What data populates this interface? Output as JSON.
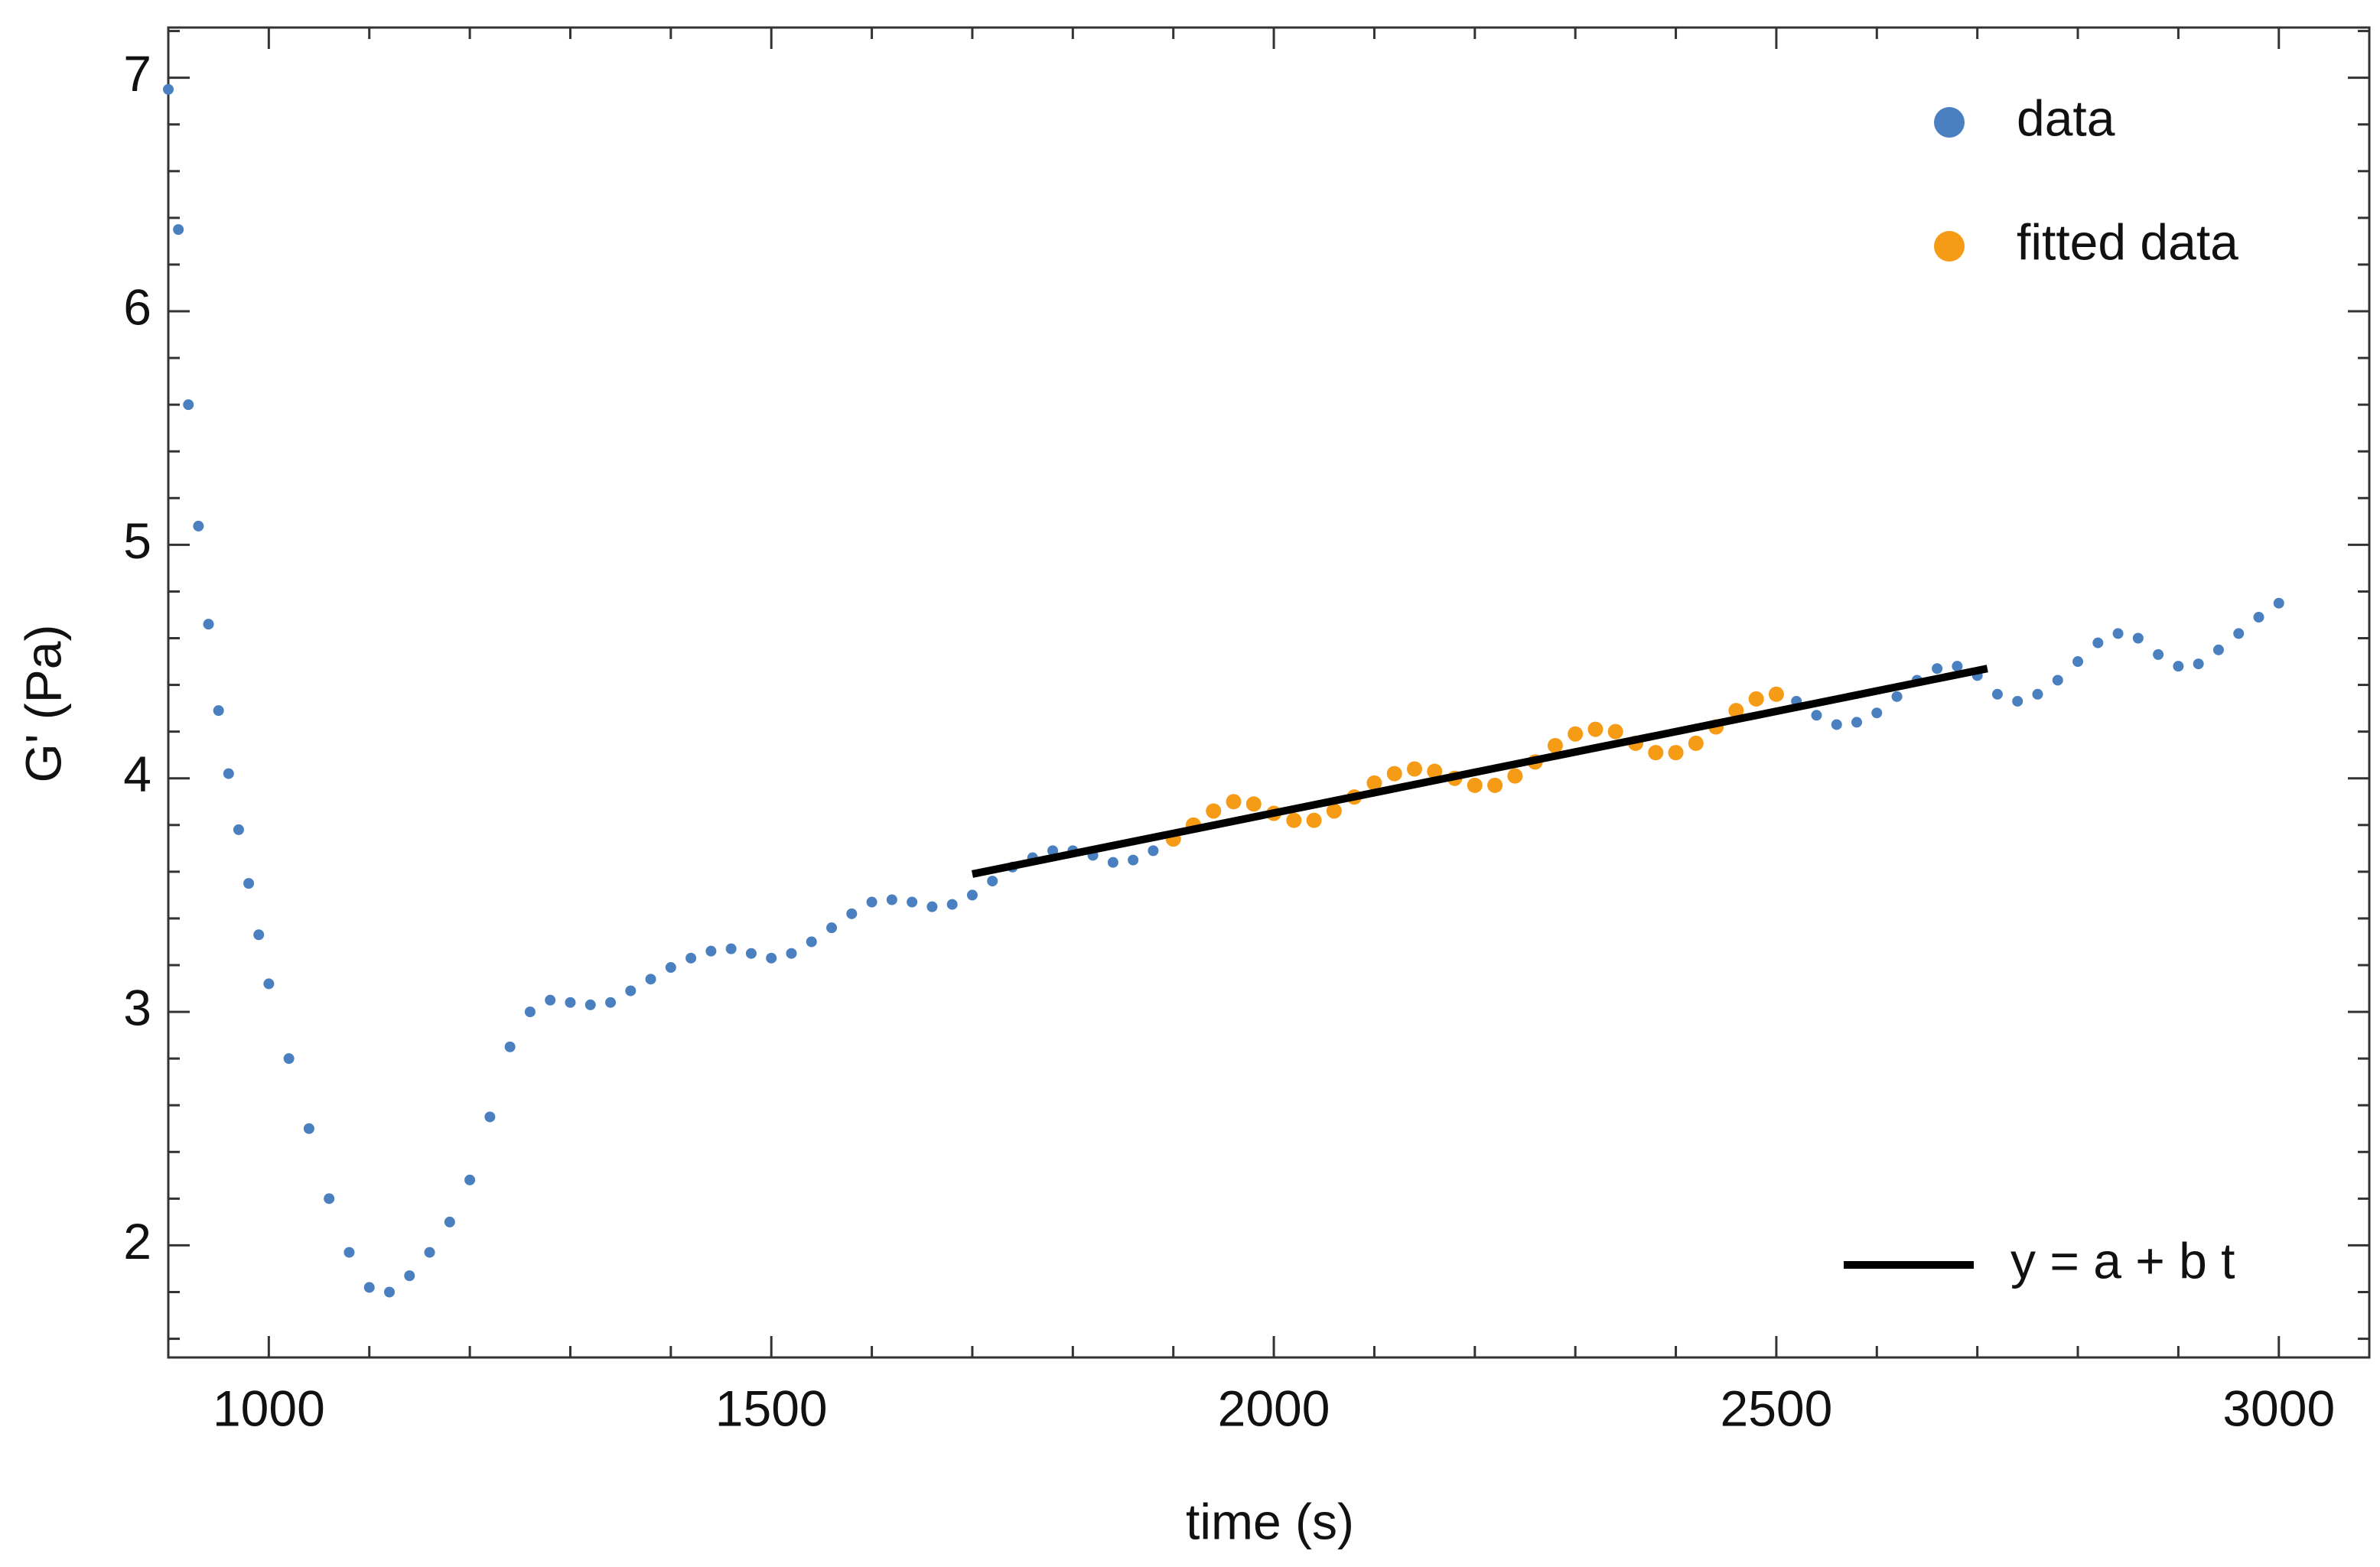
{
  "chart_data": {
    "type": "scatter",
    "xlabel": "time (s)",
    "ylabel": "G'  (Pa)",
    "xlim": [
      900,
      3090
    ],
    "ylim": [
      1.52,
      7.215
    ],
    "xticks": [
      1000,
      1500,
      2000,
      2500,
      3000
    ],
    "yticks": [
      2,
      3,
      4,
      5,
      6,
      7
    ],
    "xminorticks": [
      900,
      1100,
      1200,
      1300,
      1400,
      1600,
      1700,
      1800,
      1900,
      2100,
      2200,
      2300,
      2400,
      2600,
      2700,
      2800,
      2900
    ],
    "yminorticks": [
      1.6,
      1.8,
      2.2,
      2.4,
      2.6,
      2.8,
      3.2,
      3.4,
      3.6,
      3.8,
      4.2,
      4.4,
      4.6,
      4.8,
      5.2,
      5.4,
      5.6,
      5.8,
      6.2,
      6.4,
      6.6,
      6.8,
      7.2
    ],
    "series": [
      {
        "name": "data",
        "type": "scatter",
        "color": "#4a80bf",
        "x": [
          900,
          910,
          920,
          930,
          940,
          950,
          960,
          970,
          980,
          990,
          1000,
          1020,
          1040,
          1060,
          1080,
          1100,
          1120,
          1140,
          1160,
          1180,
          1200,
          1220,
          1240,
          1260,
          1280,
          1300,
          1320,
          1340,
          1360,
          1380,
          1400,
          1420,
          1440,
          1460,
          1480,
          1500,
          1520,
          1540,
          1560,
          1580,
          1600,
          1620,
          1640,
          1660,
          1680,
          1700,
          1720,
          1740,
          1760,
          1780,
          1800,
          1820,
          1840,
          1860,
          1880,
          1900,
          1920,
          1940,
          1960,
          1980,
          2000,
          2020,
          2040,
          2060,
          2080,
          2100,
          2120,
          2140,
          2160,
          2180,
          2200,
          2220,
          2240,
          2260,
          2280,
          2300,
          2320,
          2340,
          2360,
          2380,
          2400,
          2420,
          2440,
          2460,
          2480,
          2500,
          2520,
          2540,
          2560,
          2580,
          2600,
          2620,
          2640,
          2660,
          2680,
          2700,
          2720,
          2740,
          2760,
          2780,
          2800,
          2820,
          2840,
          2860,
          2880,
          2900,
          2920,
          2940,
          2960,
          2980,
          3000
        ],
        "values": [
          6.95,
          6.35,
          5.6,
          5.08,
          4.66,
          4.29,
          4.02,
          3.78,
          3.55,
          3.33,
          3.12,
          2.8,
          2.5,
          2.2,
          1.97,
          1.82,
          1.8,
          1.87,
          1.97,
          2.1,
          2.28,
          2.55,
          2.85,
          3.0,
          3.05,
          3.04,
          3.03,
          3.04,
          3.09,
          3.14,
          3.19,
          3.23,
          3.26,
          3.27,
          3.25,
          3.23,
          3.25,
          3.3,
          3.36,
          3.42,
          3.47,
          3.48,
          3.47,
          3.45,
          3.46,
          3.5,
          3.56,
          3.62,
          3.66,
          3.69,
          3.69,
          3.67,
          3.64,
          3.65,
          3.69,
          3.74,
          3.8,
          3.86,
          3.9,
          3.89,
          3.85,
          3.82,
          3.82,
          3.86,
          3.92,
          3.98,
          4.02,
          4.04,
          4.03,
          4.0,
          3.97,
          3.97,
          4.01,
          4.07,
          4.14,
          4.19,
          4.21,
          4.2,
          4.15,
          4.11,
          4.11,
          4.15,
          4.22,
          4.29,
          4.34,
          4.36,
          4.33,
          4.27,
          4.23,
          4.24,
          4.28,
          4.35,
          4.42,
          4.47,
          4.48,
          4.44,
          4.36,
          4.33,
          4.36,
          4.42,
          4.5,
          4.58,
          4.62,
          4.6,
          4.53,
          4.48,
          4.49,
          4.55,
          4.62,
          4.69,
          4.75
        ]
      },
      {
        "name": "fitted data",
        "type": "scatter",
        "color": "#f59b16",
        "x": [
          1900,
          1920,
          1940,
          1960,
          1980,
          2000,
          2020,
          2040,
          2060,
          2080,
          2100,
          2120,
          2140,
          2160,
          2180,
          2200,
          2220,
          2240,
          2260,
          2280,
          2300,
          2320,
          2340,
          2360,
          2380,
          2400,
          2420,
          2440,
          2460,
          2480,
          2500
        ],
        "values": [
          3.74,
          3.8,
          3.86,
          3.9,
          3.89,
          3.85,
          3.82,
          3.82,
          3.86,
          3.92,
          3.98,
          4.02,
          4.04,
          4.03,
          4.0,
          3.97,
          3.97,
          4.01,
          4.07,
          4.14,
          4.19,
          4.21,
          4.2,
          4.15,
          4.11,
          4.11,
          4.15,
          4.22,
          4.29,
          4.34,
          4.36
        ]
      },
      {
        "name": "y = a + b t",
        "type": "line",
        "color": "#000000",
        "x": [
          1700,
          2710
        ],
        "values": [
          3.59,
          4.47
        ]
      }
    ]
  }
}
